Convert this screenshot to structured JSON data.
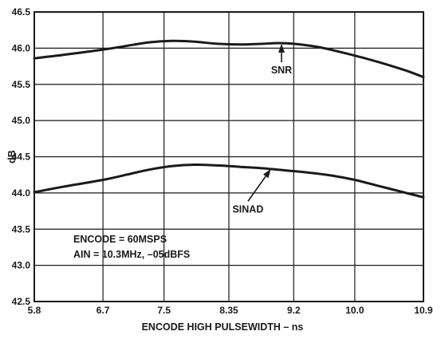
{
  "chart_data": {
    "type": "line",
    "xlabel": "ENCODE HIGH PULSEWIDTH  – ns",
    "ylabel": "dB",
    "xlim": [
      5.8,
      10.9
    ],
    "ylim": [
      42.5,
      46.5
    ],
    "x_ticks": [
      5.8,
      6.7,
      7.5,
      8.35,
      9.2,
      10.0,
      10.9
    ],
    "x_tick_labels": [
      "5.8",
      "6.7",
      "7.5",
      "8.35",
      "9.2",
      "10.0",
      "10.9"
    ],
    "y_ticks": [
      42.5,
      43.0,
      43.5,
      44.0,
      44.5,
      45.0,
      45.5,
      46.0,
      46.5
    ],
    "y_tick_labels": [
      "42.5",
      "43.0",
      "43.5",
      "44.0",
      "44.5",
      "45.0",
      "45.5",
      "46.0",
      "46.5"
    ],
    "grid": true,
    "series": [
      {
        "name": "SNR",
        "x": [
          5.8,
          6.2,
          6.7,
          7.0,
          7.3,
          7.6,
          7.9,
          8.2,
          8.5,
          8.8,
          9.0,
          9.2,
          9.5,
          9.8,
          10.1,
          10.4,
          10.7,
          10.9
        ],
        "y": [
          45.86,
          45.91,
          45.98,
          46.03,
          46.08,
          46.1,
          46.09,
          46.06,
          46.05,
          46.06,
          46.07,
          46.06,
          46.02,
          45.95,
          45.87,
          45.78,
          45.68,
          45.6
        ]
      },
      {
        "name": "SINAD",
        "x": [
          5.8,
          6.2,
          6.7,
          7.0,
          7.3,
          7.6,
          7.9,
          8.2,
          8.5,
          8.8,
          9.1,
          9.4,
          9.7,
          10.0,
          10.3,
          10.6,
          10.9
        ],
        "y": [
          44.01,
          44.09,
          44.18,
          44.25,
          44.32,
          44.37,
          44.39,
          44.38,
          44.36,
          44.34,
          44.31,
          44.28,
          44.24,
          44.18,
          44.1,
          44.02,
          43.94
        ]
      }
    ],
    "annotations": [
      {
        "text": "SNR",
        "label_x": 9.04,
        "label_y": 45.65,
        "arrow_to_x": 9.04,
        "arrow_to_y": 46.06
      },
      {
        "text": "SINAD",
        "label_x": 8.6,
        "label_y": 43.73,
        "arrow_to_x": 8.9,
        "arrow_to_y": 44.33
      }
    ],
    "note_lines": [
      "ENCODE = 60MSPS",
      "AIN = 10.3MHz, –05dBFS"
    ]
  }
}
